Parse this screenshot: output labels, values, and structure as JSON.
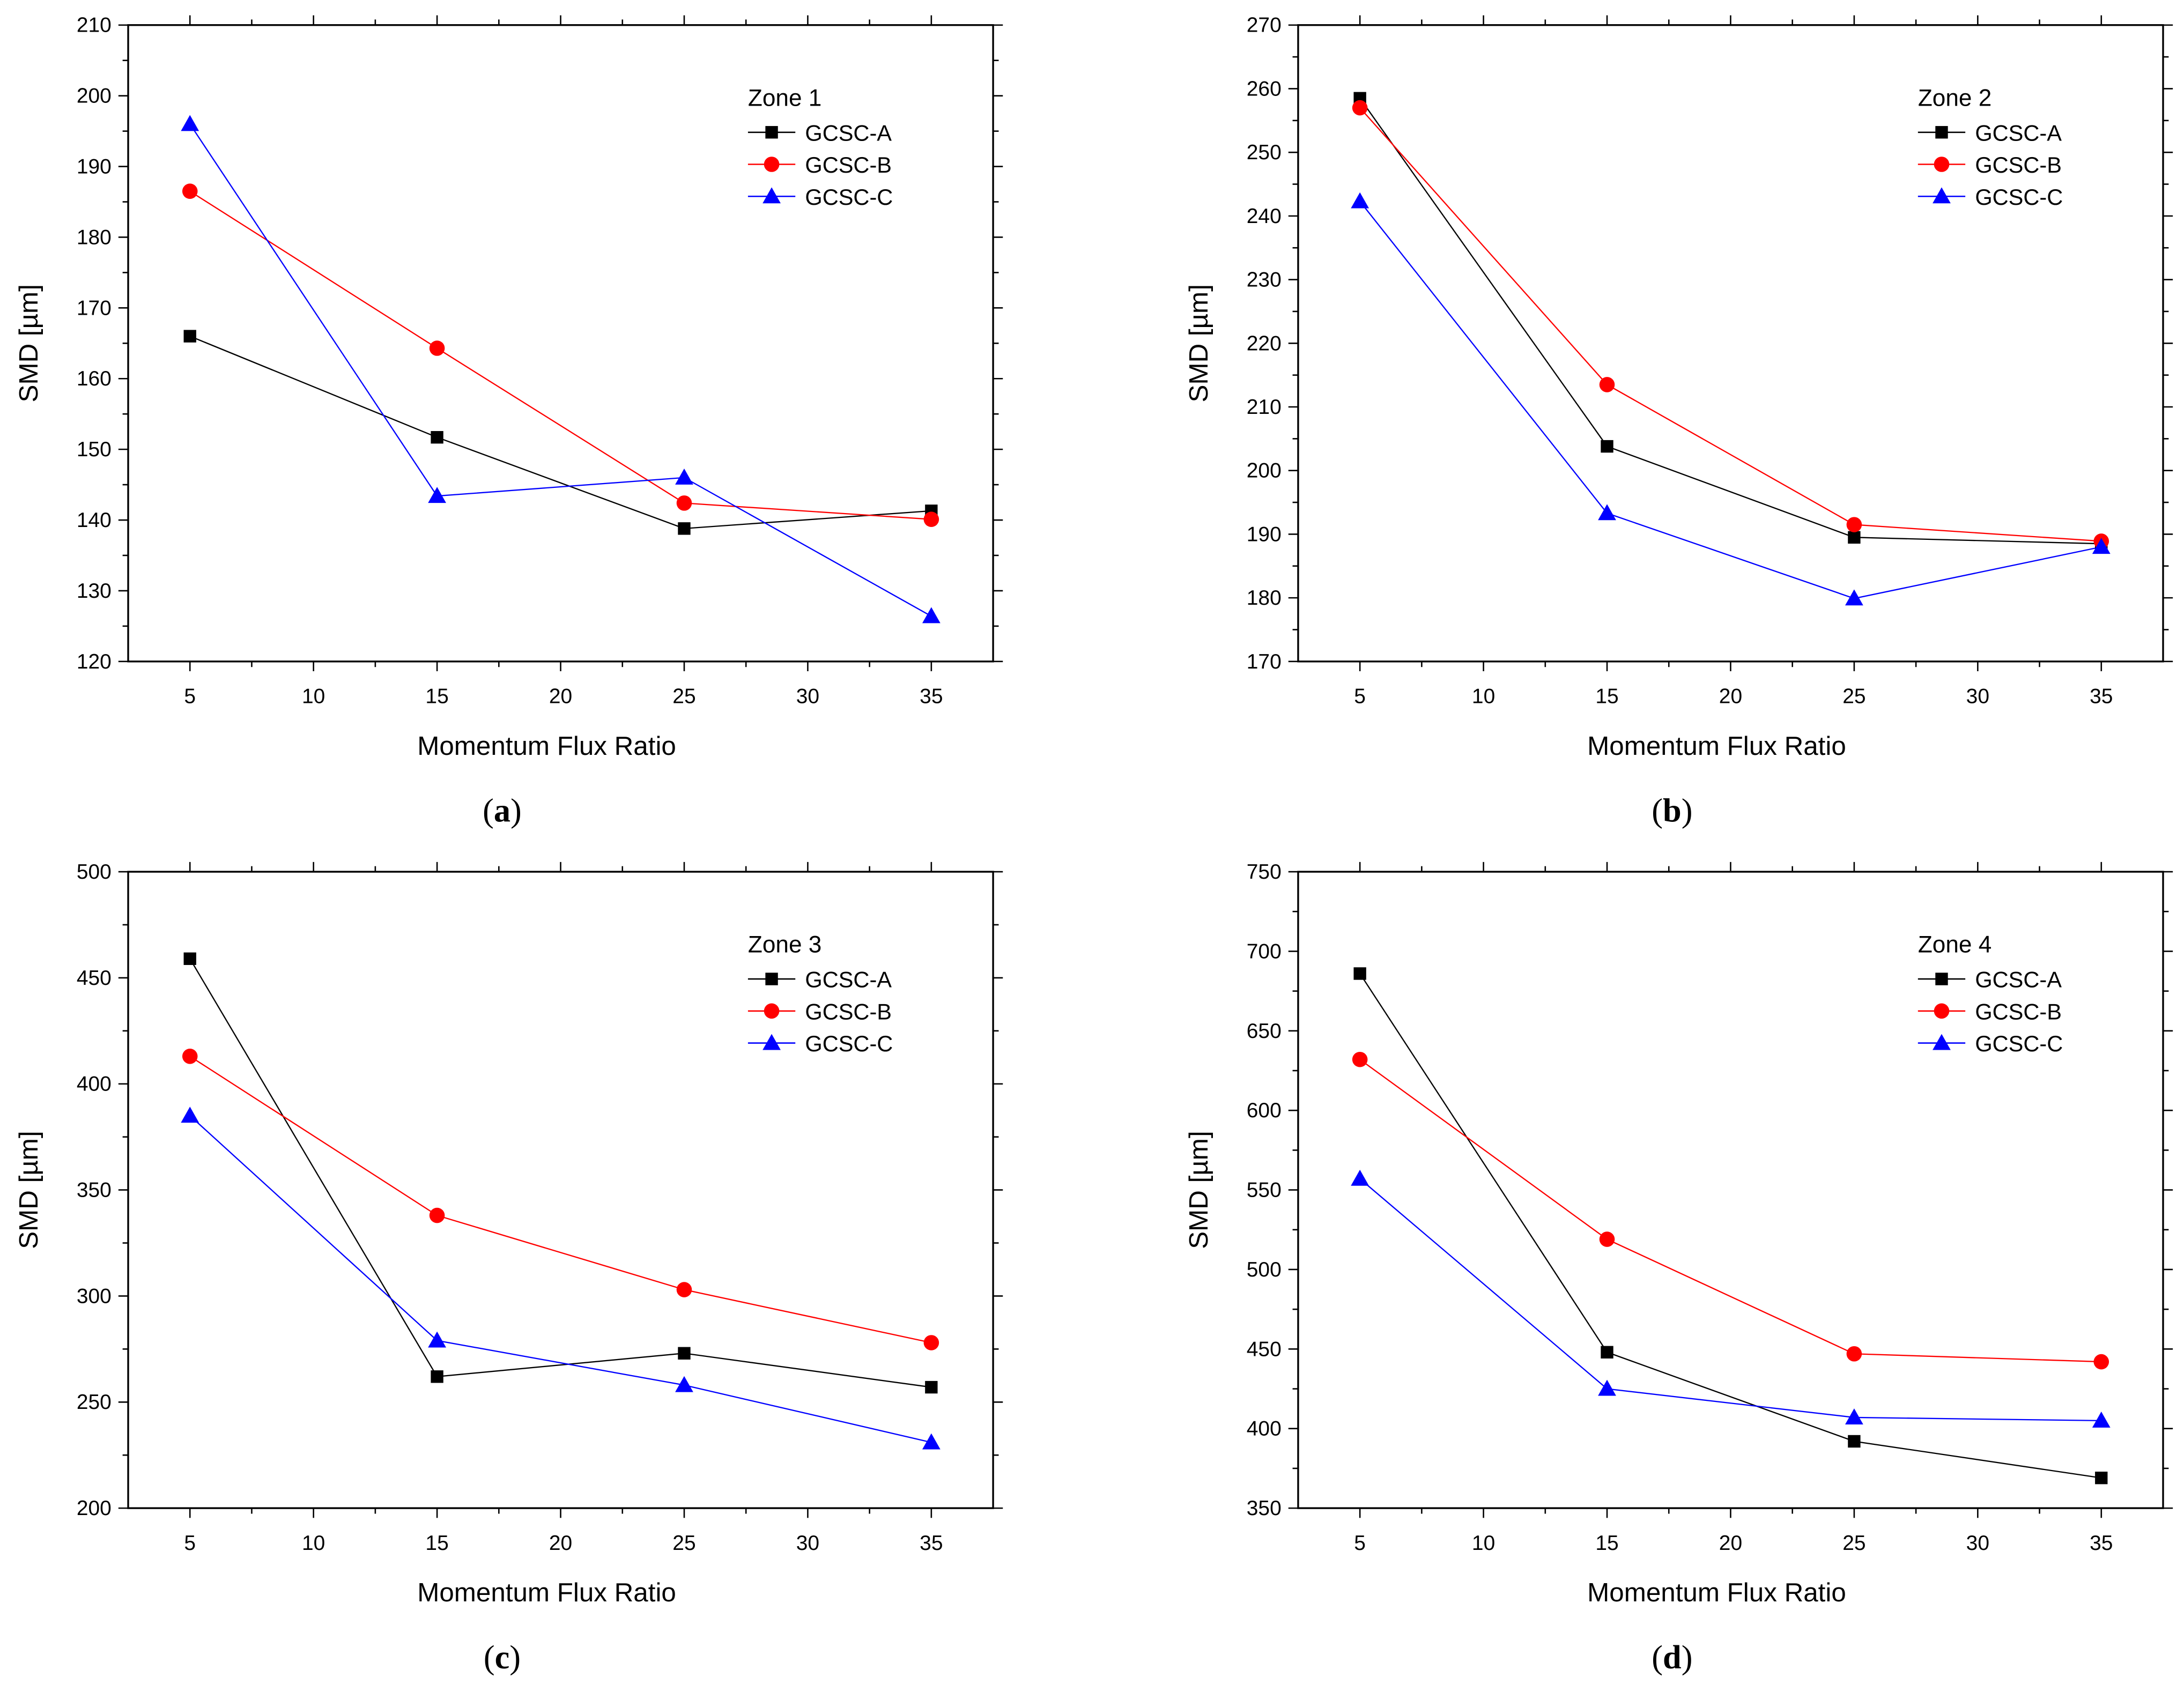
{
  "chart_data": [
    {
      "type": "line",
      "caption": "(a)",
      "caption_letter": "a",
      "legend_title": "Zone 1",
      "xlabel": "Momentum Flux Ratio",
      "ylabel": "SMD [µm]",
      "x": [
        5,
        15,
        25,
        35
      ],
      "xlim": [
        2.5,
        37.5
      ],
      "xticks": [
        5,
        10,
        15,
        20,
        25,
        30,
        35
      ],
      "ylim": [
        120,
        210
      ],
      "yticks": [
        120,
        130,
        140,
        150,
        160,
        170,
        180,
        190,
        200,
        210
      ],
      "legend_position": "top-right",
      "series": [
        {
          "name": "GCSC-A",
          "color": "#000000",
          "marker": "square",
          "values": [
            166.0,
            151.7,
            138.8,
            141.3
          ]
        },
        {
          "name": "GCSC-B",
          "color": "#ff0000",
          "marker": "circle",
          "values": [
            186.5,
            164.3,
            142.4,
            140.1
          ]
        },
        {
          "name": "GCSC-C",
          "color": "#0000ff",
          "marker": "triangle",
          "values": [
            196.0,
            143.4,
            146.0,
            126.4
          ]
        }
      ]
    },
    {
      "type": "line",
      "caption": "(b)",
      "caption_letter": "b",
      "legend_title": "Zone 2",
      "xlabel": "Momentum Flux Ratio",
      "ylabel": "SMD [µm]",
      "x": [
        5,
        15,
        25,
        35
      ],
      "xlim": [
        2.5,
        37.5
      ],
      "xticks": [
        5,
        10,
        15,
        20,
        25,
        30,
        35
      ],
      "ylim": [
        170,
        270
      ],
      "yticks": [
        170,
        180,
        190,
        200,
        210,
        220,
        230,
        240,
        250,
        260,
        270
      ],
      "legend_position": "top-right",
      "series": [
        {
          "name": "GCSC-A",
          "color": "#000000",
          "marker": "square",
          "values": [
            258.5,
            203.8,
            189.5,
            188.5
          ]
        },
        {
          "name": "GCSC-B",
          "color": "#ff0000",
          "marker": "circle",
          "values": [
            257.0,
            213.5,
            191.5,
            188.9
          ]
        },
        {
          "name": "GCSC-C",
          "color": "#0000ff",
          "marker": "triangle",
          "values": [
            242.3,
            193.3,
            179.9,
            188.0
          ]
        }
      ]
    },
    {
      "type": "line",
      "caption": "(c)",
      "caption_letter": "c",
      "legend_title": "Zone 3",
      "xlabel": "Momentum Flux Ratio",
      "ylabel": "SMD [µm]",
      "x": [
        5,
        15,
        25,
        35
      ],
      "xlim": [
        2.5,
        37.5
      ],
      "xticks": [
        5,
        10,
        15,
        20,
        25,
        30,
        35
      ],
      "ylim": [
        200,
        500
      ],
      "yticks": [
        200,
        250,
        300,
        350,
        400,
        450,
        500
      ],
      "legend_position": "top-right",
      "series": [
        {
          "name": "GCSC-A",
          "color": "#000000",
          "marker": "square",
          "values": [
            459,
            262,
            273,
            257
          ]
        },
        {
          "name": "GCSC-B",
          "color": "#ff0000",
          "marker": "circle",
          "values": [
            413,
            338,
            303,
            278
          ]
        },
        {
          "name": "GCSC-C",
          "color": "#0000ff",
          "marker": "triangle",
          "values": [
            385,
            279,
            258,
            231
          ]
        }
      ]
    },
    {
      "type": "line",
      "caption": "(d)",
      "caption_letter": "d",
      "legend_title": "Zone 4",
      "xlabel": "Momentum Flux Ratio",
      "ylabel": "SMD [µm]",
      "x": [
        5,
        15,
        25,
        35
      ],
      "xlim": [
        2.5,
        37.5
      ],
      "xticks": [
        5,
        10,
        15,
        20,
        25,
        30,
        35
      ],
      "ylim": [
        350,
        750
      ],
      "yticks": [
        350,
        400,
        450,
        500,
        550,
        600,
        650,
        700,
        750
      ],
      "legend_position": "top-right",
      "series": [
        {
          "name": "GCSC-A",
          "color": "#000000",
          "marker": "square",
          "values": [
            686,
            448,
            392,
            369
          ]
        },
        {
          "name": "GCSC-B",
          "color": "#ff0000",
          "marker": "circle",
          "values": [
            632,
            519,
            447,
            442
          ]
        },
        {
          "name": "GCSC-C",
          "color": "#0000ff",
          "marker": "triangle",
          "values": [
            557,
            425,
            407,
            405
          ]
        }
      ]
    }
  ]
}
